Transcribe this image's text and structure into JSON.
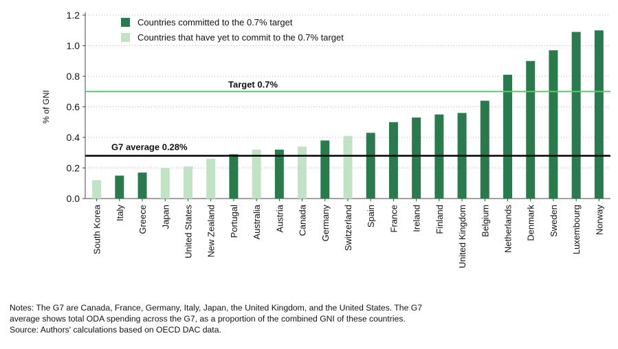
{
  "chart_data": {
    "type": "bar",
    "ylabel": "% of GNI",
    "ylim": [
      0,
      1.2
    ],
    "yticks": [
      "0.0",
      "0.2",
      "0.4",
      "0.6",
      "0.8",
      "1.0",
      "1.2"
    ],
    "categories": [
      "South Korea",
      "Italy",
      "Greece",
      "Japan",
      "United States",
      "New Zealand",
      "Portugal",
      "Australia",
      "Austria",
      "Canada",
      "Germany",
      "Switzerland",
      "Spain",
      "France",
      "Ireland",
      "Finland",
      "United Kingdom",
      "Belgium",
      "Netherlands",
      "Denmark",
      "Sweden",
      "Luxembourg",
      "Norway"
    ],
    "values": [
      0.12,
      0.15,
      0.17,
      0.2,
      0.21,
      0.26,
      0.29,
      0.32,
      0.32,
      0.34,
      0.38,
      0.41,
      0.43,
      0.5,
      0.53,
      0.55,
      0.56,
      0.64,
      0.81,
      0.9,
      0.97,
      1.09,
      1.1
    ],
    "committed": [
      false,
      true,
      true,
      false,
      false,
      false,
      true,
      false,
      true,
      false,
      true,
      false,
      true,
      true,
      true,
      true,
      true,
      true,
      true,
      true,
      true,
      true,
      true
    ],
    "legend": [
      {
        "label": "Countries committed to the 0.7% target",
        "color": "#2a7a4e"
      },
      {
        "label": "Countries that have yet to commit to the 0.7% target",
        "color": "#c2e2c6"
      }
    ],
    "reference_lines": [
      {
        "label": "Target 0.7%",
        "value": 0.7,
        "color": "#5fc86a"
      },
      {
        "label": "G7 average 0.28%",
        "value": 0.28,
        "color": "#000000"
      }
    ],
    "grid": "dotted horizontal"
  },
  "notes": {
    "line1": "Notes: The G7 are Canada, France, Germany, Italy, Japan, the United Kingdom, and the United States. The G7",
    "line2": "average shows total ODA spending across the G7, as a proportion of the combined GNI of these countries.",
    "line3": "Source: Authors' calculations based on OECD DAC data."
  }
}
